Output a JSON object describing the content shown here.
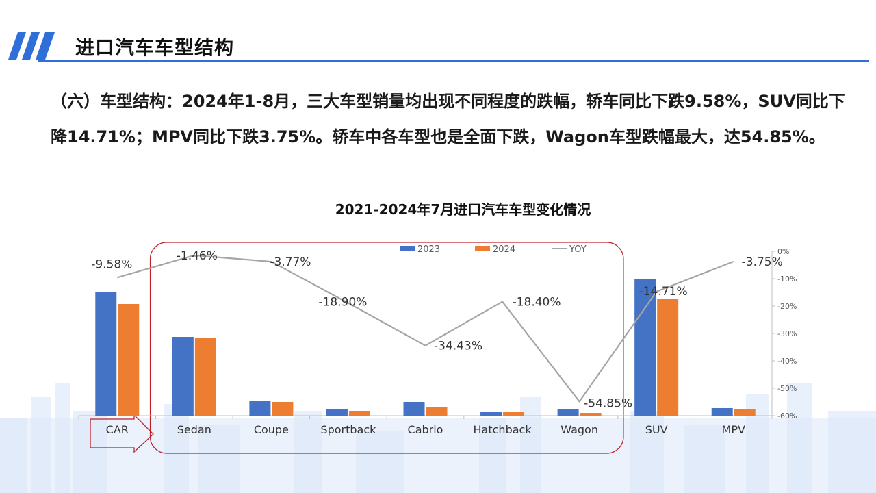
{
  "header": {
    "title": "进口汽车车型结构"
  },
  "body": {
    "paragraph": "（六）车型结构：2024年1-8月，三大车型销量均出现不同程度的跌幅，轿车同比下跌9.58%，SUV同比下降14.71%；MPV同比下跌3.75%。轿车中各车型也是全面下跌，Wagon车型跌幅最大，达54.85%。"
  },
  "colors": {
    "accent": "#2f6fd8",
    "series_2023": "#4472c4",
    "series_2024": "#ed7d31",
    "series_yoy": "#a5a5a5",
    "highlight_box": "#c0202a"
  },
  "chart_data": {
    "type": "bar",
    "title": "2021-2024年7月进口汽车车型变化情况",
    "categories": [
      "CAR",
      "Sedan",
      "Coupe",
      "Sportback",
      "Cabrio",
      "Hatchback",
      "Wagon",
      "SUV",
      "MPV"
    ],
    "series": [
      {
        "name": "2023",
        "type": "bar",
        "values": [
          181,
          115,
          21,
          9,
          20,
          6,
          9,
          199,
          11
        ]
      },
      {
        "name": "2024",
        "type": "bar",
        "values": [
          163,
          113,
          20,
          7,
          12,
          5,
          4,
          171,
          10
        ]
      },
      {
        "name": "YOY",
        "type": "line",
        "axis": "right",
        "values": [
          -9.58,
          -1.46,
          -3.77,
          -18.9,
          -34.43,
          -18.4,
          -54.85,
          -14.71,
          -3.75
        ],
        "labels": [
          "-9.58%",
          "-1.46%",
          "-3.77%",
          "-18.90%",
          "-34.43%",
          "-18.40%",
          "-54.85%",
          "-14.71%",
          "-3.75%"
        ]
      }
    ],
    "y_left_range": [
      0,
      240
    ],
    "y_right_range": [
      -60,
      0
    ],
    "y_right_ticks": [
      "0%",
      "-10%",
      "-20%",
      "-30%",
      "-40%",
      "-50%",
      "-60%"
    ],
    "legend_position": "top-center",
    "grid": false,
    "highlight_box_categories": [
      "Sedan",
      "Wagon"
    ],
    "annotation": "arrow-right"
  }
}
